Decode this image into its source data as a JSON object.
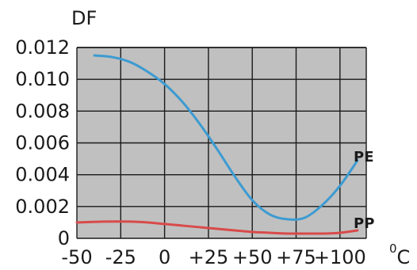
{
  "chart_data": {
    "type": "line",
    "ylabel": "DF",
    "xlabel": "°C",
    "xlabel_sup": "0",
    "xlabel_unit": "C",
    "x_ticks": [
      "-50",
      "-25",
      "0",
      "+25",
      "+50",
      "+75",
      "+100"
    ],
    "y_ticks": [
      "0",
      "0.002",
      "0.004",
      "0.006",
      "0.008",
      "0.010",
      "0.012"
    ],
    "xlim": [
      -50,
      115
    ],
    "ylim": [
      0,
      0.012
    ],
    "grid": true,
    "plot_background": "#c0c0c0",
    "series": [
      {
        "name": "PE",
        "color": "#3d9bd1",
        "x": [
          -40,
          -30,
          -20,
          -10,
          0,
          10,
          20,
          30,
          40,
          50,
          60,
          70,
          80,
          90,
          100,
          110
        ],
        "y": [
          0.0115,
          0.0114,
          0.0111,
          0.0105,
          0.0097,
          0.0086,
          0.0072,
          0.0056,
          0.0039,
          0.0024,
          0.0015,
          0.0012,
          0.0013,
          0.0021,
          0.0033,
          0.0049
        ]
      },
      {
        "name": "PP",
        "color": "#d94a4a",
        "x": [
          -50,
          -35,
          -20,
          -10,
          0,
          10,
          20,
          30,
          40,
          50,
          60,
          70,
          80,
          90,
          100,
          110
        ],
        "y": [
          0.001,
          0.00105,
          0.00105,
          0.001,
          0.0009,
          0.0008,
          0.0007,
          0.0006,
          0.0005,
          0.0004,
          0.00035,
          0.0003,
          0.0003,
          0.0003,
          0.00035,
          0.0005
        ]
      }
    ]
  }
}
